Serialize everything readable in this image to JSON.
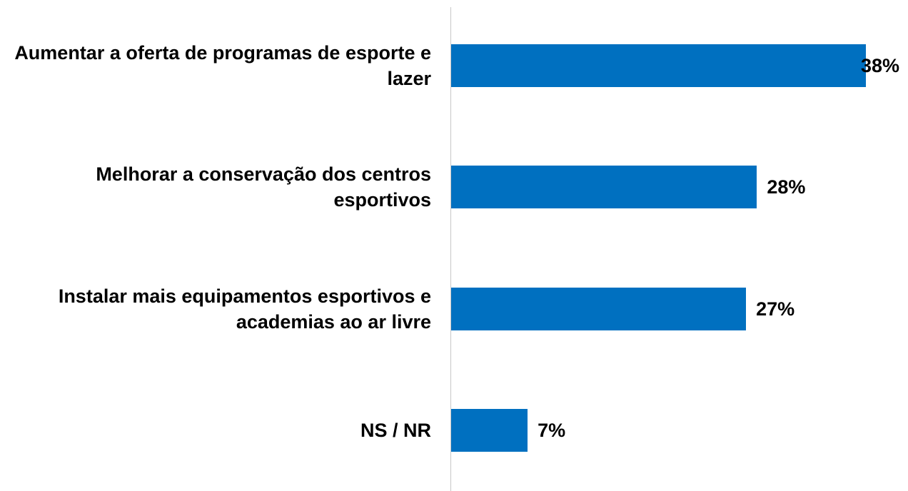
{
  "chart_data": {
    "type": "barh",
    "categories": [
      "Aumentar a oferta de programas de esporte e lazer",
      "Melhorar a conservação dos centros esportivos",
      "Instalar mais equipamentos esportivos e academias ao ar livre",
      "NS / NR"
    ],
    "values": [
      38,
      28,
      27,
      7
    ],
    "value_labels": [
      "38%",
      "28%",
      "27%",
      "7%"
    ],
    "color": "#0070c0",
    "xlim": [
      0,
      40
    ]
  }
}
